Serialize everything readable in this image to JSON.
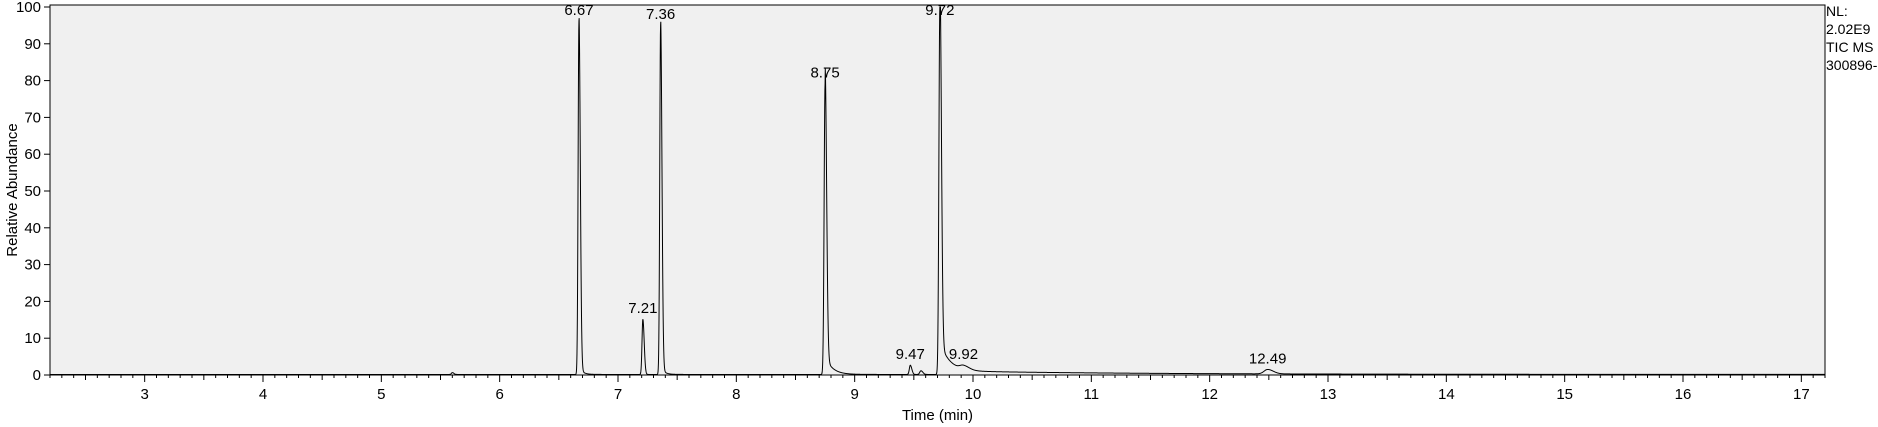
{
  "chart_data": {
    "type": "line",
    "xlabel": "Time (min)",
    "ylabel": "Relative Abundance",
    "xlim": [
      2.2,
      17.2
    ],
    "ylim": [
      0,
      100
    ],
    "x_ticks": [
      3,
      4,
      5,
      6,
      7,
      8,
      9,
      10,
      11,
      12,
      13,
      14,
      15,
      16,
      17
    ],
    "y_ticks": [
      0,
      10,
      20,
      30,
      40,
      50,
      60,
      70,
      80,
      90,
      100
    ],
    "grid": false,
    "info": {
      "nl_label": "NL:",
      "nl_value": "2.02E9",
      "scan_type": "TIC  MS",
      "file_name": "300896-"
    },
    "peaks": [
      {
        "rt": 5.6,
        "height": 0.5,
        "width": 0.008,
        "label": ""
      },
      {
        "rt": 6.67,
        "height": 96,
        "width": 0.007,
        "label": "6.67"
      },
      {
        "rt": 7.21,
        "height": 15,
        "width": 0.007,
        "label": "7.21"
      },
      {
        "rt": 7.36,
        "height": 95,
        "width": 0.007,
        "label": "7.36"
      },
      {
        "rt": 8.75,
        "height": 79,
        "width": 0.008,
        "label": "8.75"
      },
      {
        "rt": 9.47,
        "height": 2.5,
        "width": 0.008,
        "label": "9.47"
      },
      {
        "rt": 9.56,
        "height": 1.0,
        "width": 0.01,
        "label": ""
      },
      {
        "rt": 9.72,
        "height": 100,
        "width": 0.008,
        "label": "9.72"
      },
      {
        "rt": 9.92,
        "height": 1.0,
        "width": 0.03,
        "label": "9.92"
      },
      {
        "rt": 12.49,
        "height": 1.2,
        "width": 0.03,
        "label": "12.49"
      }
    ],
    "tails": [
      {
        "start": 6.67,
        "amp": 2.0,
        "decay": 0.03
      },
      {
        "start": 7.36,
        "amp": 2.0,
        "decay": 0.03
      },
      {
        "start": 8.75,
        "amp": 5.0,
        "decay": 0.06
      },
      {
        "start": 9.72,
        "amp": 8.0,
        "decay": 0.08
      },
      {
        "start": 9.72,
        "amp": 1.0,
        "decay": 1.5
      }
    ]
  }
}
